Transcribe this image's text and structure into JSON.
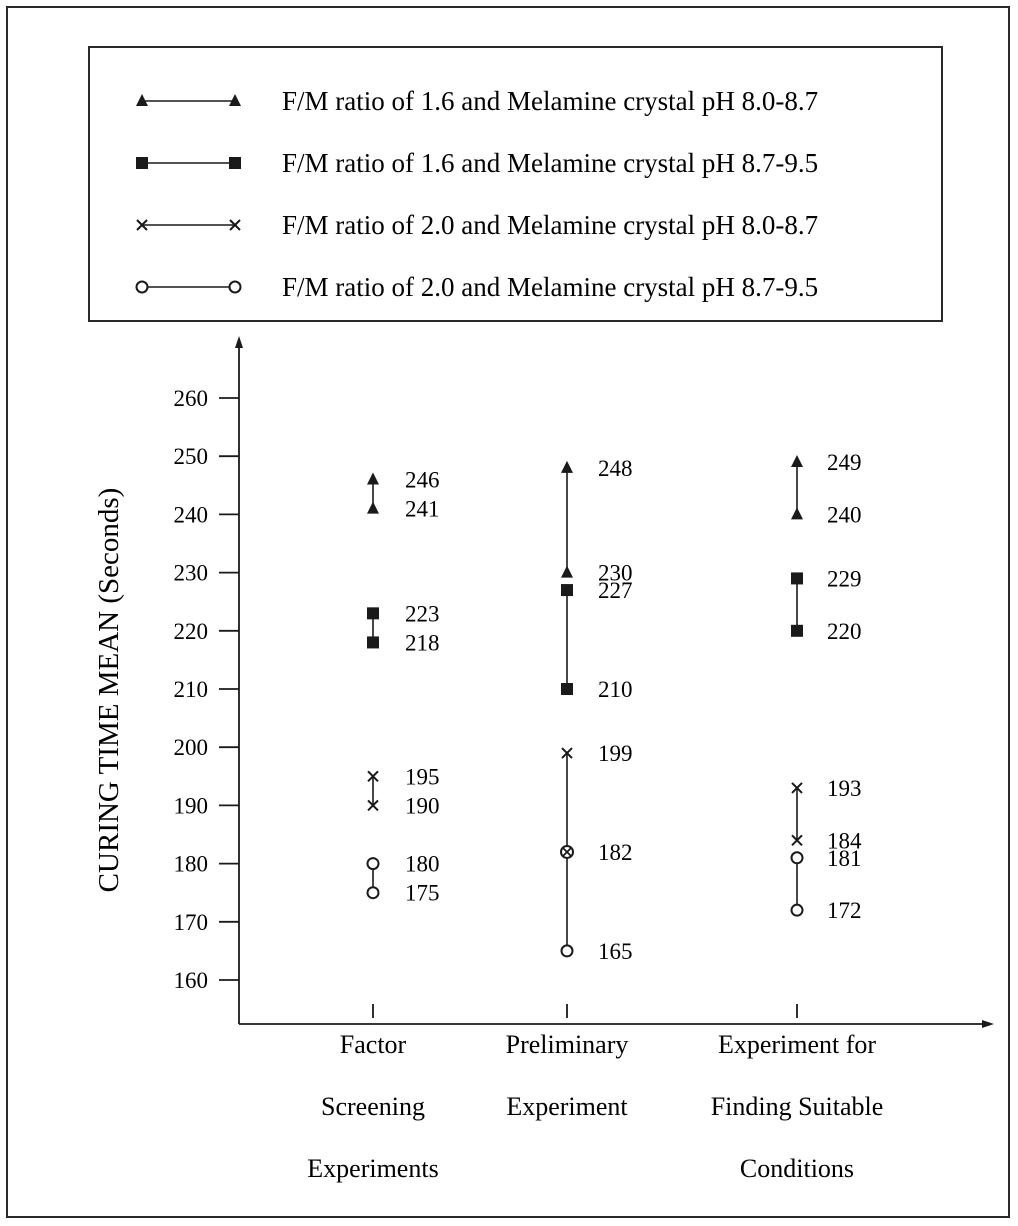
{
  "chart_data": {
    "type": "line",
    "title": "",
    "xlabel": "",
    "ylabel": "CURING TIME MEAN (Seconds)",
    "ylim": [
      160,
      260
    ],
    "yticks": [
      160,
      170,
      180,
      190,
      200,
      210,
      220,
      230,
      240,
      250,
      260
    ],
    "categories": [
      {
        "lines": [
          "Factor",
          "Screening",
          "Experiments"
        ]
      },
      {
        "lines": [
          "Preliminary",
          "Experiment"
        ]
      },
      {
        "lines": [
          "Experiment for",
          "Finding Suitable",
          "Conditions"
        ]
      }
    ],
    "legend_position": "top",
    "series": [
      {
        "name": "F/M ratio of 1.6 and Melamine crystal pH 8.0-8.7",
        "marker": "triangle",
        "points": [
          {
            "cat": 0,
            "y": 246
          },
          {
            "cat": 0,
            "y": 241
          },
          {
            "cat": 1,
            "y": 248
          },
          {
            "cat": 1,
            "y": 230
          },
          {
            "cat": 2,
            "y": 249
          },
          {
            "cat": 2,
            "y": 240
          }
        ]
      },
      {
        "name": "F/M ratio of 1.6 and Melamine crystal pH 8.7-9.5",
        "marker": "square",
        "points": [
          {
            "cat": 0,
            "y": 223
          },
          {
            "cat": 0,
            "y": 218
          },
          {
            "cat": 1,
            "y": 227
          },
          {
            "cat": 1,
            "y": 210
          },
          {
            "cat": 2,
            "y": 229
          },
          {
            "cat": 2,
            "y": 220
          }
        ]
      },
      {
        "name": "F/M ratio of 2.0 and Melamine crystal pH 8.0-8.7",
        "marker": "cross",
        "points": [
          {
            "cat": 0,
            "y": 195
          },
          {
            "cat": 0,
            "y": 190
          },
          {
            "cat": 1,
            "y": 199
          },
          {
            "cat": 1,
            "y": 182
          },
          {
            "cat": 2,
            "y": 193
          },
          {
            "cat": 2,
            "y": 184
          }
        ]
      },
      {
        "name": "F/M ratio of 2.0 and Melamine crystal pH 8.7-9.5",
        "marker": "circle",
        "points": [
          {
            "cat": 0,
            "y": 180
          },
          {
            "cat": 0,
            "y": 175
          },
          {
            "cat": 1,
            "y": 182
          },
          {
            "cat": 1,
            "y": 165
          },
          {
            "cat": 2,
            "y": 181
          },
          {
            "cat": 2,
            "y": 172
          }
        ]
      }
    ]
  }
}
